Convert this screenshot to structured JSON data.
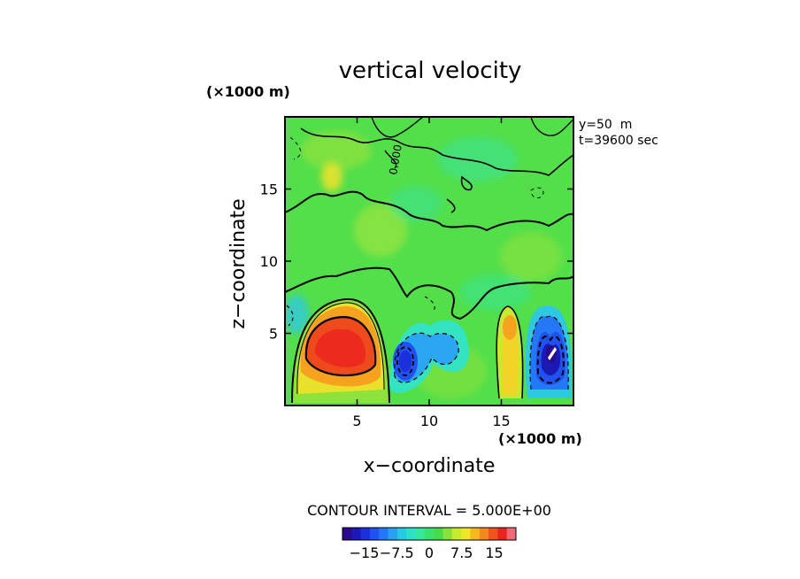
{
  "chart_data": {
    "type": "heatmap",
    "title": "vertical velocity",
    "xlabel": "x−coordinate",
    "ylabel": "z−coordinate",
    "x_unit": "(×1000 m)",
    "y_unit": "(×1000 m)",
    "xlim": [
      0,
      20
    ],
    "ylim": [
      0,
      20
    ],
    "x_ticks": [
      5,
      10,
      15
    ],
    "y_ticks": [
      5,
      10,
      15
    ],
    "x_tick_labels": [
      "5",
      "10",
      "15"
    ],
    "y_tick_labels": [
      "5",
      "10",
      "15"
    ],
    "annotations": [
      "y=50  m",
      "t=39600 sec"
    ],
    "contour_interval_text": "CONTOUR INTERVAL = 5.000E+00",
    "contour_label": "0.000",
    "colorbar": {
      "min": -20,
      "max": 20,
      "step": 2.5,
      "colors": [
        "#2a0a8c",
        "#1c18b4",
        "#1b30d8",
        "#1f52ee",
        "#2478f6",
        "#2aa0f2",
        "#27c8e6",
        "#2ee0c8",
        "#34e89c",
        "#3ae070",
        "#45dc4a",
        "#86e23a",
        "#c6ea30",
        "#f0e628",
        "#f6b822",
        "#f4881e",
        "#ee541c",
        "#e8261e",
        "#f06a78"
      ],
      "tick_values": [
        -15,
        -7.5,
        0,
        7.5,
        15
      ],
      "tick_labels": [
        "−15",
        "−7.5",
        "0",
        "7.5",
        "15"
      ]
    },
    "features": [
      {
        "name": "updraft-core-left",
        "x": 4.1,
        "z": 3.6,
        "value": 18
      },
      {
        "name": "downdraft-center",
        "x": 8.3,
        "z": 3.0,
        "value": -10
      },
      {
        "name": "updraft-right",
        "x": 15.4,
        "z": 3.8,
        "value": 8
      },
      {
        "name": "downdraft-right",
        "x": 18.4,
        "z": 3.8,
        "value": -17
      }
    ]
  }
}
